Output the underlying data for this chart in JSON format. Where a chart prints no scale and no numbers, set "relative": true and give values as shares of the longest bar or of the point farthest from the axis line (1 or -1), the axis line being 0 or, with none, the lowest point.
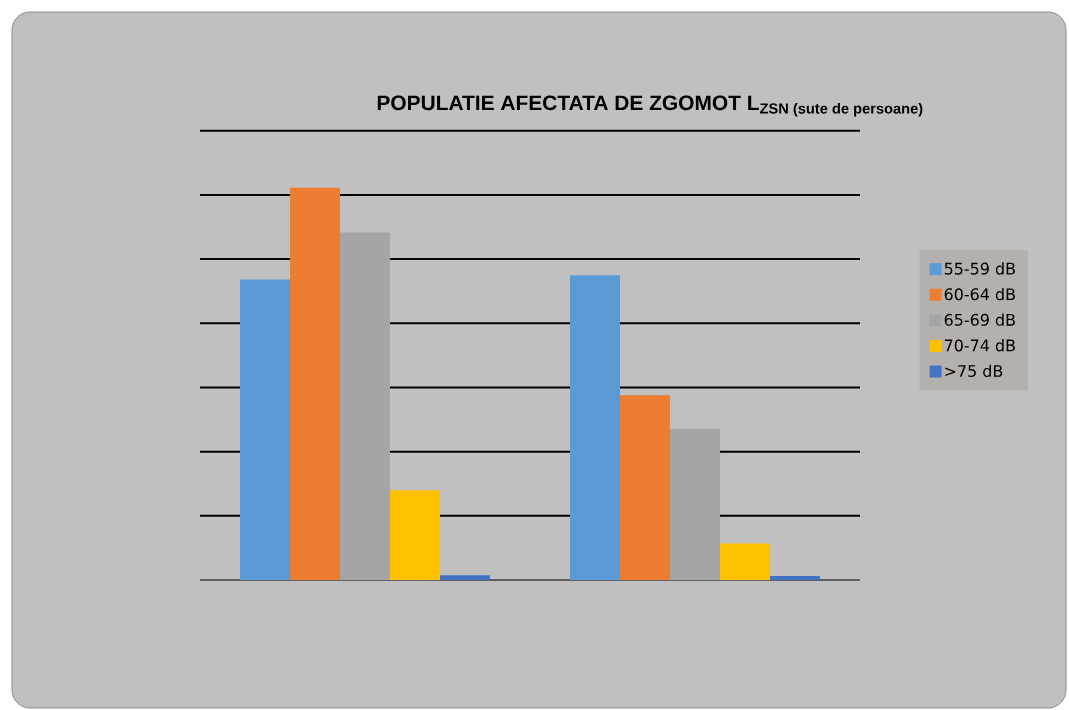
{
  "chart_data": {
    "type": "bar",
    "title": "POPULATIE AFECTATA DE ZGOMOT  L$_{ZSN  (sute de persoane)}$",
    "relative": true,
    "categories": [
      null,
      null
    ],
    "grid": "y",
    "legend": "right",
    "series": [
      {
        "name": "55-59 dB",
        "color": "#5b9bd5",
        "values": [
          0.766,
          0.777
        ]
      },
      {
        "name": "60-64 dB",
        "color": "#ed7d31",
        "values": [
          1,
          0.471
        ]
      },
      {
        "name": "65-69 dB",
        "color": "#a5a5a5",
        "values": [
          0.886,
          0.385
        ]
      },
      {
        "name": "70-74 dB",
        "color": "#ffc000",
        "values": [
          0.229,
          0.093
        ]
      },
      {
        "name": ">75 dB",
        "color": "#4472c4",
        "values": [
          0.012,
          0.01
        ]
      }
    ]
  }
}
